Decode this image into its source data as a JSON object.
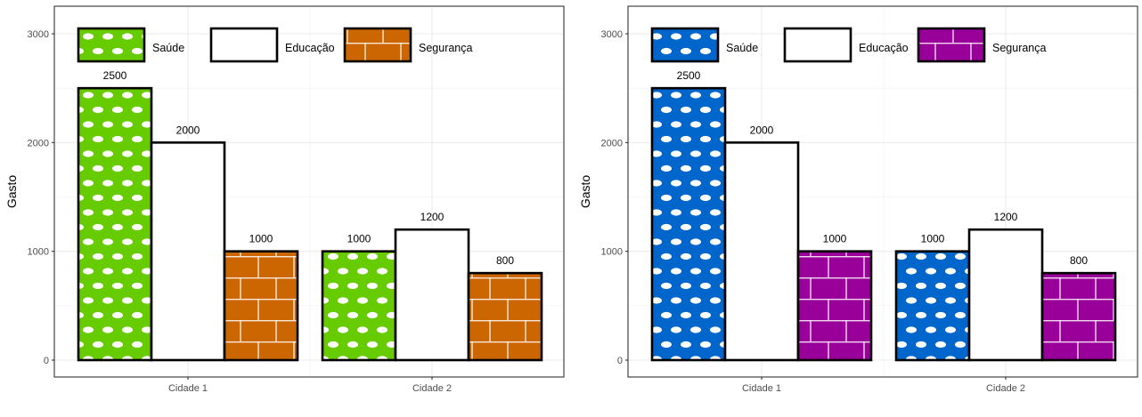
{
  "chart_data": [
    {
      "type": "bar",
      "categories": [
        "Cidade 1",
        "Cidade 2"
      ],
      "series": [
        {
          "name": "Saúde",
          "values": [
            2500,
            1000
          ],
          "color": "#66CC00",
          "pattern": "dots"
        },
        {
          "name": "Educação",
          "values": [
            2000,
            1200
          ],
          "color": "#FFFFFF",
          "pattern": "none"
        },
        {
          "name": "Segurança",
          "values": [
            1000,
            800
          ],
          "color": "#CC6600",
          "pattern": "bricks"
        }
      ],
      "ylabel": "Gasto",
      "xlabel": "",
      "ylim": [
        0,
        3100
      ],
      "yticks": [
        0,
        1000,
        2000,
        3000
      ],
      "grid": true,
      "legend_position": "top-left, inside"
    },
    {
      "type": "bar",
      "categories": [
        "Cidade 1",
        "Cidade 2"
      ],
      "series": [
        {
          "name": "Saúde",
          "values": [
            2500,
            1000
          ],
          "color": "#0066CC",
          "pattern": "dots"
        },
        {
          "name": "Educação",
          "values": [
            2000,
            1200
          ],
          "color": "#FFFFFF",
          "pattern": "none"
        },
        {
          "name": "Segurança",
          "values": [
            1000,
            800
          ],
          "color": "#990099",
          "pattern": "bricks"
        }
      ],
      "ylabel": "Gasto",
      "xlabel": "",
      "ylim": [
        0,
        3100
      ],
      "yticks": [
        0,
        1000,
        2000,
        3000
      ],
      "grid": true,
      "legend_position": "top-left, inside"
    }
  ]
}
